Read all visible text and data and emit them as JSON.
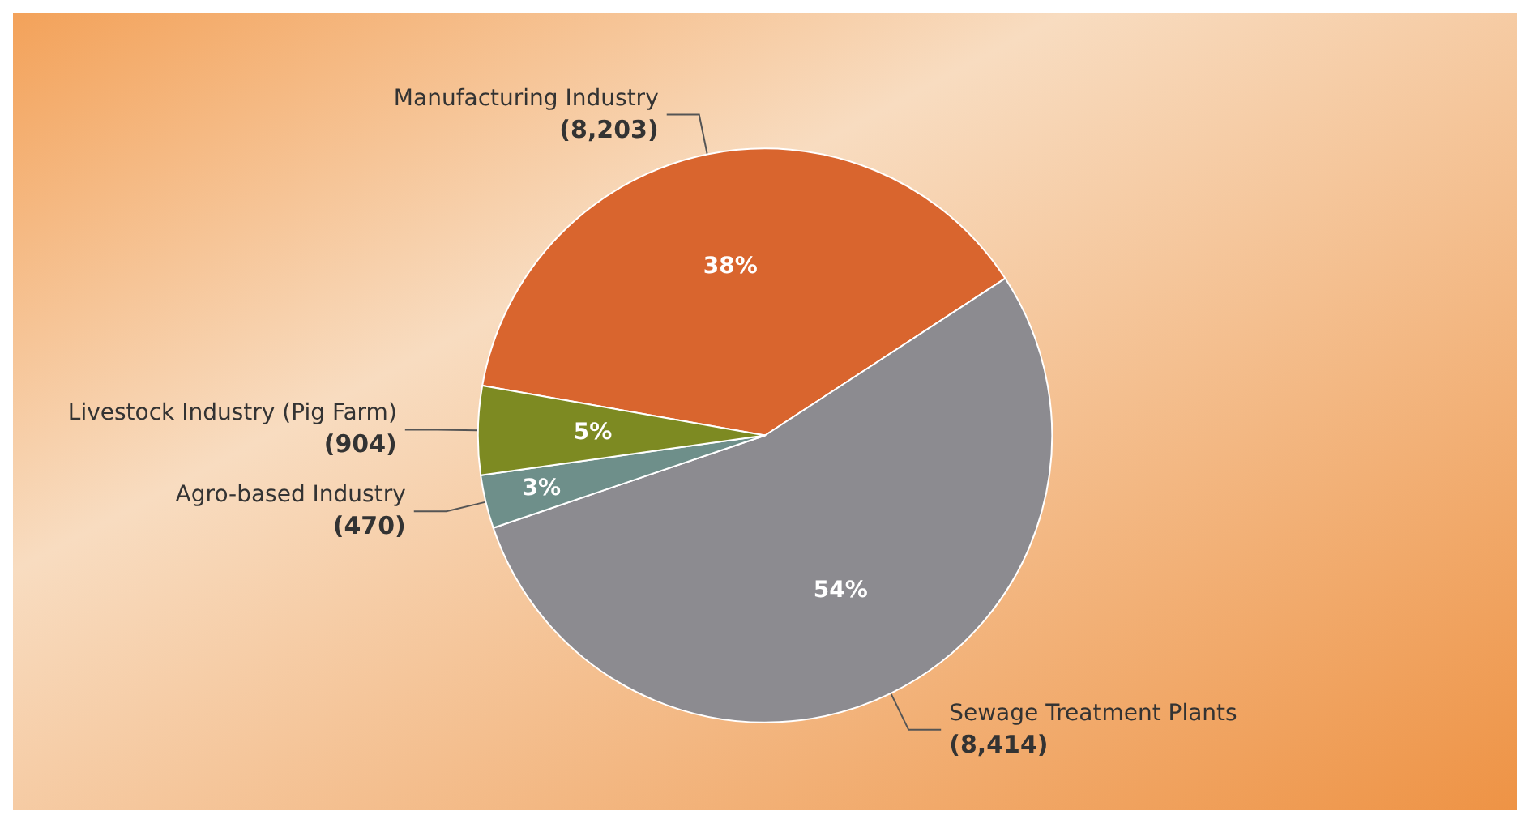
{
  "chart_data": {
    "type": "pie",
    "categories": [
      "Manufacturing Industry",
      "Sewage Treatment Plants",
      "Agro-based Industry",
      "Livestock Industry (Pig Farm)"
    ],
    "values": [
      38,
      54,
      3,
      5
    ],
    "colors": [
      "#d9652e",
      "#8c8b90",
      "#6e8f8a",
      "#7d8a22"
    ],
    "value_labels": [
      "38%",
      "54%",
      "3%",
      "5%"
    ],
    "annotations": [
      {
        "text": "(8,203)",
        "x": "Manufacturing Industry"
      },
      {
        "text": "(8,414)",
        "x": "Sewage Treatment Plants"
      },
      {
        "text": "(470)",
        "x": "Agro-based Industry"
      },
      {
        "text": "(904)",
        "x": "Livestock Industry (Pig Farm)"
      }
    ]
  }
}
